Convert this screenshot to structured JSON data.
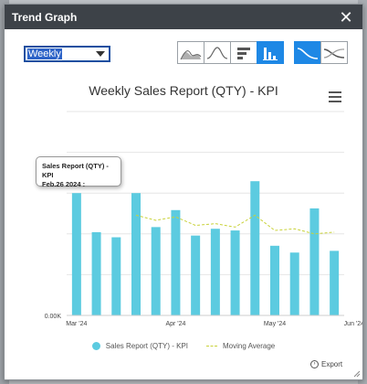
{
  "window": {
    "title": "Trend Graph"
  },
  "period_select": {
    "value": "Weekly"
  },
  "icons": {
    "close": "close-icon",
    "area_chart": "area-chart-icon",
    "line_chart": "line-chart-icon",
    "horizontal_bar": "horizontal-bar-icon",
    "vertical_bar": "vertical-bar-icon",
    "curve_smooth": "smooth-curve-icon",
    "curve_dual": "dual-curve-icon",
    "menu": "hamburger-menu-icon",
    "export": "export-icon"
  },
  "chart_data": {
    "type": "bar",
    "title": "Weekly Sales Report (QTY) - KPI",
    "y_ticks": [
      "0.00K",
      "",
      "",
      "",
      "",
      "",
      ""
    ],
    "ylim": [
      0,
      6
    ],
    "x_tick_labels": [
      {
        "index": 0,
        "label": "Mar '24"
      },
      {
        "index": 5,
        "label": "Apr '24"
      },
      {
        "index": 10,
        "label": "May '24"
      },
      {
        "index": 14,
        "label": "Jun '24"
      }
    ],
    "series": [
      {
        "name": "Sales Report (QTY) - KPI",
        "values": [
          3.6,
          2.45,
          2.3,
          3.6,
          2.6,
          3.1,
          2.35,
          2.55,
          2.5,
          3.95,
          2.05,
          1.85,
          3.15,
          1.9
        ]
      },
      {
        "name": "Moving Average",
        "values": [
          null,
          null,
          null,
          2.95,
          2.8,
          2.9,
          2.65,
          2.7,
          2.6,
          2.95,
          2.5,
          2.55,
          2.4,
          2.45
        ]
      }
    ],
    "colors": {
      "bar": "#5ccbe0",
      "moving_average": "#c9d23a",
      "grid": "#e6e6e6"
    },
    "legend_position": "bottom",
    "tooltip": {
      "line1": "Sales Report (QTY) - KPI",
      "line2": "Feb.26 2024 :"
    }
  },
  "legend": {
    "item1": "Sales Report (QTY) - KPI",
    "item2": "Moving Average"
  },
  "export": {
    "label": "Export"
  }
}
